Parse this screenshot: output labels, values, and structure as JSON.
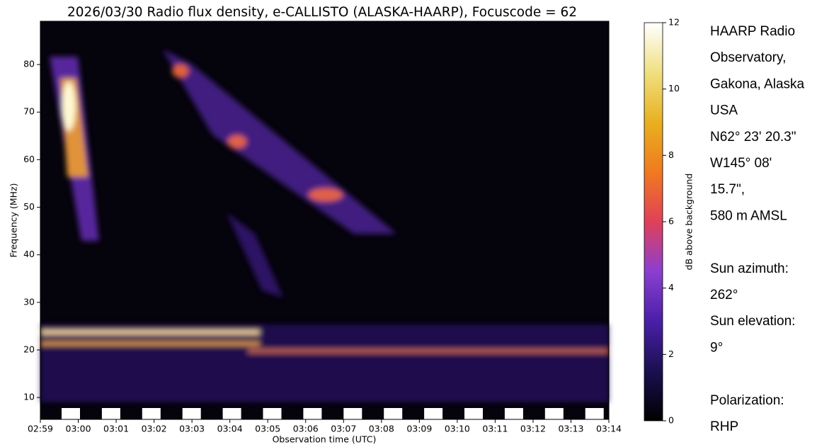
{
  "chart_data": {
    "type": "spectrogram",
    "title": "2026/03/30 Radio flux density, e-CALLISTO (ALASKA-HAARP), Focuscode = 62",
    "x_label": "Observation time (UTC)",
    "y_label": "Frequency (MHz)",
    "categories": [
      "02:59",
      "03:00",
      "03:01",
      "03:02",
      "03:03",
      "03:04",
      "03:05",
      "03:06",
      "03:07",
      "03:08",
      "03:09",
      "03:10",
      "03:11",
      "03:12",
      "03:13",
      "03:14"
    ],
    "ylim": [
      5.4,
      89.1
    ],
    "yticks": [
      10,
      20,
      30,
      40,
      50,
      60,
      70,
      80
    ],
    "colorbar": {
      "label": "dB above background",
      "lim": [
        0,
        12
      ],
      "ticks": [
        0,
        2,
        4,
        6,
        8,
        10,
        12
      ],
      "colormap": [
        "#000000",
        "#1a1050",
        "#4a1fa8",
        "#8a3fd0",
        "#e0405a",
        "#f07a20",
        "#e8b020",
        "#f0e080",
        "#ffffff"
      ]
    }
  },
  "side_panel": {
    "groups": [
      [
        "HAARP Radio",
        "Observatory,",
        "Gakona, Alaska",
        "USA",
        "N62° 23' 20.3\"",
        "W145° 08'",
        "15.7\",",
        "580 m AMSL"
      ],
      [
        "Sun azimuth:",
        "262°",
        "Sun elevation:",
        "9°"
      ],
      [
        "Polarization:",
        "RHP"
      ]
    ]
  }
}
